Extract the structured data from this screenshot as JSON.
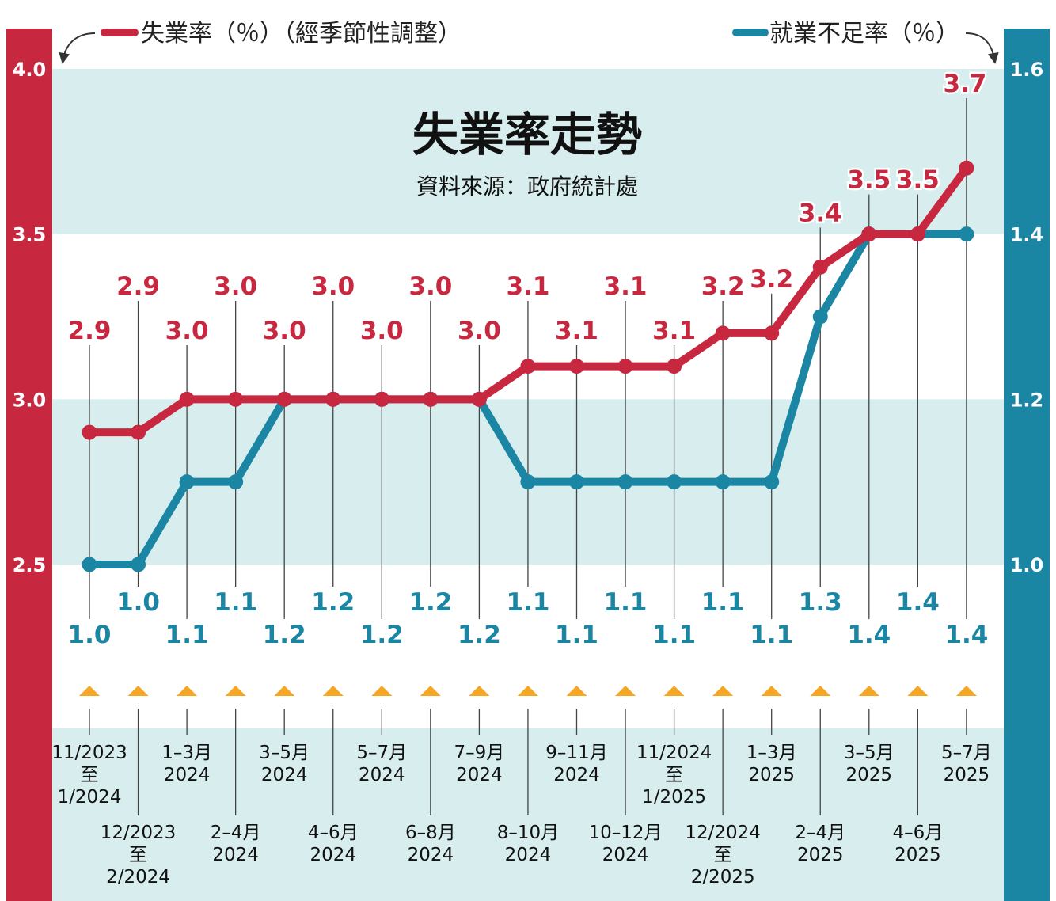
{
  "chart_data": {
    "type": "line",
    "title": "失業率走勢",
    "subtitle": "資料來源：政府統計處",
    "categories": [
      [
        "11/2023",
        "至",
        "1/2024"
      ],
      [
        "12/2023",
        "至",
        "2/2024"
      ],
      [
        "1–3月",
        "2024"
      ],
      [
        "2–4月",
        "2024"
      ],
      [
        "3–5月",
        "2024"
      ],
      [
        "4–6月",
        "2024"
      ],
      [
        "5–7月",
        "2024"
      ],
      [
        "6–8月",
        "2024"
      ],
      [
        "7–9月",
        "2024"
      ],
      [
        "8–10月",
        "2024"
      ],
      [
        "9–11月",
        "2024"
      ],
      [
        "10–12月",
        "2024"
      ],
      [
        "11/2024",
        "至",
        "1/2025"
      ],
      [
        "12/2024",
        "至",
        "2/2025"
      ],
      [
        "1–3月",
        "2025"
      ],
      [
        "2–4月",
        "2025"
      ],
      [
        "3–5月",
        "2025"
      ],
      [
        "4–6月",
        "2025"
      ],
      [
        "5–7月",
        "2025"
      ]
    ],
    "series": [
      {
        "name": "失業率（％）（經季節性調整）",
        "axis": "left",
        "color": "#c8283f",
        "values": [
          2.9,
          2.9,
          3.0,
          3.0,
          3.0,
          3.0,
          3.0,
          3.0,
          3.0,
          3.1,
          3.1,
          3.1,
          3.1,
          3.2,
          3.2,
          3.4,
          3.5,
          3.5,
          3.7
        ],
        "labels": [
          "2.9",
          "2.9",
          "3.0",
          "3.0",
          "3.0",
          "3.0",
          "3.0",
          "3.0",
          "3.0",
          "3.1",
          "3.1",
          "3.1",
          "3.1",
          "3.2",
          "3.2",
          "3.4",
          "3.5",
          "3.5",
          "3.7"
        ]
      },
      {
        "name": "就業不足率（％）",
        "axis": "right",
        "color": "#1a86a4",
        "values": [
          1.0,
          1.0,
          1.1,
          1.1,
          1.2,
          1.2,
          1.2,
          1.2,
          1.2,
          1.1,
          1.1,
          1.1,
          1.1,
          1.1,
          1.1,
          1.3,
          1.4,
          1.4,
          1.4
        ],
        "labels": [
          "1.0",
          "1.0",
          "1.1",
          "1.1",
          "1.2",
          "1.2",
          "1.2",
          "1.2",
          "1.2",
          "1.1",
          "1.1",
          "1.1",
          "1.1",
          "1.1",
          "1.1",
          "1.3",
          "1.4",
          "1.4",
          "1.4"
        ]
      }
    ],
    "y_left": {
      "ticks": [
        "2.5",
        "3.0",
        "3.5",
        "4.0"
      ],
      "range": [
        2.5,
        4.0
      ]
    },
    "y_right": {
      "ticks": [
        "1.0",
        "1.2",
        "1.4",
        "1.6"
      ],
      "range": [
        1.0,
        1.6
      ]
    },
    "legend_placement": "top",
    "grid": "alternating horizontal bands",
    "colors": {
      "unemployment": "#c8283f",
      "underemployment": "#1a86a4",
      "band": "#d8eeee",
      "marker": "#f5a623"
    }
  }
}
